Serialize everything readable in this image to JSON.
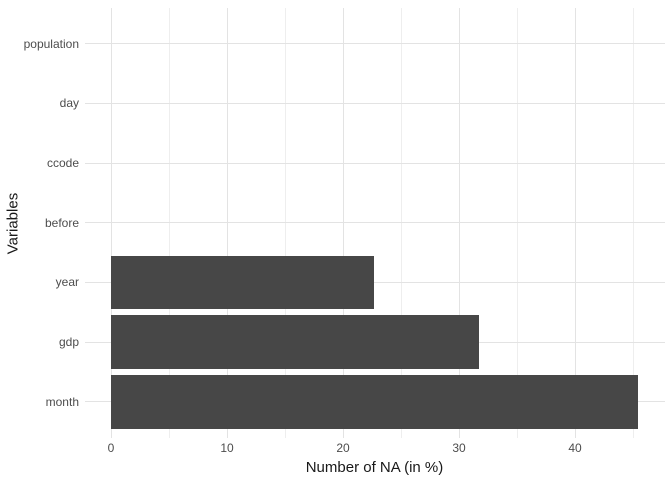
{
  "chart_data": {
    "type": "bar",
    "orientation": "horizontal",
    "title": "",
    "xlabel": "Number of NA (in %)",
    "ylabel": "Variables",
    "categories": [
      "population",
      "day",
      "ccode",
      "before",
      "year",
      "gdp",
      "month"
    ],
    "values": [
      0,
      0,
      0,
      0,
      22.7,
      31.7,
      45.4
    ],
    "x_axis": {
      "major_tick_values": [
        0,
        10,
        20,
        30,
        40
      ],
      "major_tick_labels": [
        "0",
        "10",
        "20",
        "30",
        "40"
      ],
      "minor_tick_values": [
        5,
        15,
        25,
        35,
        45
      ],
      "range_shown": [
        -2.3,
        47.6
      ]
    },
    "grid": "major and minor vertical lines, major horizontal lines at category centers, no axis ticks, no panel border",
    "legend_position": "none",
    "colors": {
      "bar_fill": "#474747",
      "grid_major": "#e3e3e3",
      "grid_minor": "#eeeeee",
      "axis_text": "#4d4d4d",
      "axis_title_text": "#191919",
      "background": "#ffffff"
    }
  }
}
